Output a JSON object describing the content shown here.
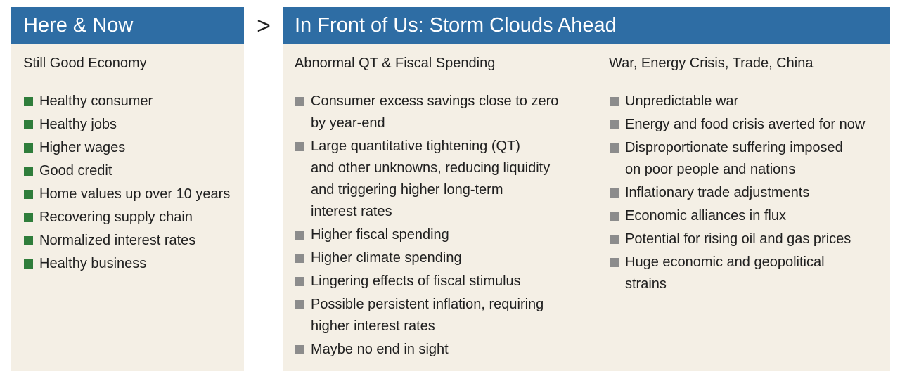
{
  "left_panel": {
    "title": "Here & Now",
    "heading": "Still Good Economy",
    "bullet_color": "#2f7d3b",
    "items": [
      "Healthy consumer",
      "Healthy jobs",
      "Higher wages",
      "Good credit",
      "Home values up over 10 years",
      "Recovering supply chain",
      "Normalized interest rates",
      "Healthy business"
    ]
  },
  "arrow": ">",
  "right_panel": {
    "title": "In Front of Us: Storm Clouds Ahead",
    "bullet_color": "#8c8c8c",
    "columns": [
      {
        "heading": "Abnormal QT & Fiscal Spending",
        "items": [
          [
            "Consumer excess savings close to zero",
            "by year-end"
          ],
          [
            "Large quantitative tightening (QT)",
            "and other unknowns, reducing liquidity",
            "and triggering higher long-term",
            "interest rates"
          ],
          [
            "Higher fiscal spending"
          ],
          [
            "Higher climate spending"
          ],
          [
            "Lingering effects of fiscal stimulus"
          ],
          [
            "Possible persistent inflation, requiring",
            "higher interest rates"
          ],
          [
            "Maybe no end in sight"
          ]
        ]
      },
      {
        "heading": "War, Energy Crisis, Trade, China",
        "items": [
          [
            "Unpredictable war"
          ],
          [
            "Energy and food crisis averted for now"
          ],
          [
            "Disproportionate suffering imposed",
            "on poor people and nations"
          ],
          [
            "Inflationary trade adjustments"
          ],
          [
            "Economic alliances in flux"
          ],
          [
            "Potential for rising oil and gas prices"
          ],
          [
            "Huge economic and geopolitical strains"
          ]
        ]
      }
    ]
  },
  "colors": {
    "header_blue": "#2e6da4",
    "panel_bg": "#f4efe5"
  }
}
